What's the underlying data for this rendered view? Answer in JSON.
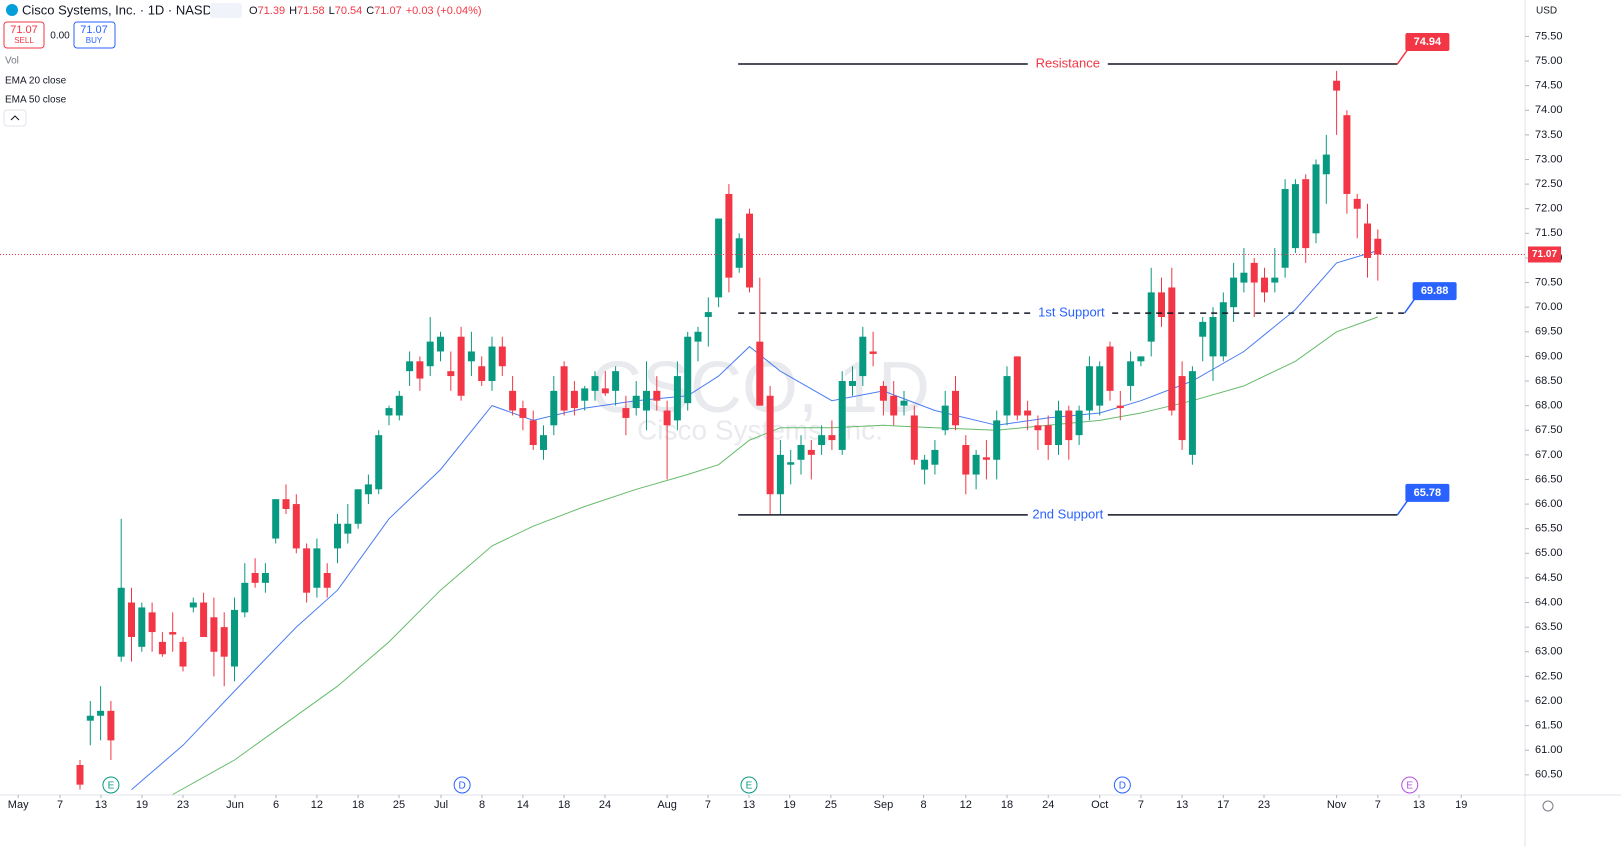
{
  "header": {
    "symbol": "Cisco Systems, Inc. · 1D · NASDAQ",
    "ohlc": [
      {
        "label": "O",
        "value": 71.39
      },
      {
        "label": "H",
        "value": 71.58
      },
      {
        "label": "L",
        "value": 70.54
      },
      {
        "label": "C",
        "value": 71.07
      }
    ],
    "change": "+0.03 (+0.04%)",
    "sell": {
      "price": 71.07,
      "label": "SELL"
    },
    "spread": "0.00",
    "buy": {
      "price": 71.07,
      "label": "BUY"
    },
    "vol": "Vol",
    "currency": "USD"
  },
  "chart_data": {
    "type": "candlestick",
    "watermark": {
      "title": "CSCO, 1D",
      "subtitle": "Cisco Systems, Inc."
    },
    "up_color": "#089981",
    "down_color": "#f23645",
    "open": [
      60.7,
      61.6,
      61.7,
      61.8,
      62.9,
      64.0,
      63.1,
      63.8,
      63.2,
      63.4,
      63.2,
      63.9,
      64.0,
      63.7,
      63.5,
      62.7,
      63.8,
      64.6,
      64.4,
      65.3,
      66.1,
      66.0,
      65.1,
      64.3,
      64.6,
      65.1,
      65.4,
      65.6,
      66.2,
      66.3,
      67.8,
      67.8,
      68.7,
      68.9,
      68.8,
      69.1,
      68.7,
      69.4,
      68.9,
      68.8,
      68.5,
      69.2,
      68.3,
      67.95,
      67.7,
      67.1,
      67.6,
      68.8,
      68.3,
      68.1,
      68.3,
      68.35,
      68.3,
      67.95,
      67.95,
      67.9,
      68.3,
      67.9,
      67.7,
      68.05,
      69.3,
      69.8,
      70.2,
      72.3,
      70.8,
      71.9,
      69.3,
      68.2,
      66.2,
      66.8,
      66.9,
      67.1,
      67.2,
      67.4,
      67.1,
      68.4,
      68.6,
      69.1,
      68.4,
      68.2,
      68.0,
      67.8,
      66.7,
      66.8,
      67.5,
      68.3,
      67.2,
      66.6,
      66.95,
      66.9,
      67.8,
      69.0,
      67.9,
      67.6,
      67.6,
      67.2,
      67.9,
      67.4,
      67.9,
      68.0,
      69.2,
      68.0,
      68.4,
      68.9,
      69.3,
      70.3,
      70.4,
      68.6,
      67.0,
      69.4,
      69.0,
      69.0,
      70.0,
      70.5,
      70.9,
      70.6,
      70.5,
      70.8,
      71.2,
      72.6,
      71.5,
      72.7,
      74.6,
      73.9,
      72.2,
      71.7,
      71.39
    ],
    "high": [
      60.8,
      62.0,
      62.3,
      62.0,
      65.7,
      64.3,
      64.0,
      64.0,
      63.4,
      63.8,
      63.3,
      64.1,
      64.2,
      64.1,
      63.8,
      64.1,
      64.8,
      64.9,
      64.8,
      66.1,
      66.4,
      66.2,
      65.2,
      65.3,
      64.8,
      65.8,
      66.0,
      66.3,
      66.6,
      67.5,
      68.0,
      68.3,
      69.1,
      69.0,
      69.8,
      69.5,
      69.1,
      69.6,
      69.5,
      69.0,
      69.4,
      69.4,
      68.6,
      68.1,
      67.9,
      67.6,
      68.6,
      68.9,
      68.5,
      68.4,
      68.7,
      68.7,
      68.8,
      68.2,
      68.5,
      68.9,
      68.6,
      68.1,
      68.9,
      69.5,
      69.6,
      70.2,
      71.8,
      72.5,
      71.5,
      72.0,
      70.6,
      68.4,
      67.3,
      67.1,
      67.4,
      67.3,
      67.6,
      67.7,
      68.7,
      68.8,
      69.6,
      69.5,
      68.5,
      68.5,
      68.3,
      68.0,
      67.0,
      67.3,
      68.3,
      68.6,
      67.4,
      67.1,
      67.3,
      67.9,
      68.8,
      69.0,
      68.1,
      67.8,
      67.8,
      68.1,
      68.0,
      68.0,
      69.0,
      68.9,
      69.3,
      68.3,
      69.1,
      69.0,
      70.8,
      70.6,
      70.8,
      68.9,
      68.8,
      69.8,
      70.0,
      70.3,
      70.9,
      71.2,
      71.0,
      70.8,
      71.2,
      72.6,
      72.6,
      72.7,
      73.0,
      73.5,
      74.8,
      74.0,
      72.3,
      72.1,
      71.58
    ],
    "low": [
      60.2,
      61.1,
      61.2,
      60.8,
      62.8,
      62.8,
      63.0,
      63.0,
      62.9,
      63.0,
      62.6,
      63.8,
      63.3,
      62.5,
      62.3,
      62.4,
      63.7,
      64.3,
      64.2,
      65.2,
      65.8,
      65.0,
      64.0,
      64.1,
      64.1,
      64.8,
      65.2,
      65.5,
      66.0,
      66.2,
      67.6,
      67.7,
      68.4,
      68.3,
      68.6,
      68.9,
      68.3,
      68.1,
      68.6,
      68.4,
      68.3,
      68.6,
      67.8,
      67.5,
      67.1,
      66.9,
      67.4,
      67.8,
      67.8,
      67.9,
      68.1,
      68.2,
      68.0,
      67.4,
      67.8,
      67.5,
      67.9,
      66.5,
      67.5,
      67.9,
      68.9,
      69.2,
      70.0,
      70.3,
      70.7,
      70.3,
      68.0,
      65.8,
      65.8,
      66.4,
      66.6,
      66.5,
      67.0,
      67.1,
      67.0,
      68.2,
      68.4,
      68.8,
      67.8,
      67.6,
      67.8,
      66.8,
      66.4,
      66.6,
      67.4,
      67.5,
      66.2,
      66.3,
      66.5,
      66.5,
      67.6,
      67.7,
      67.5,
      67.1,
      66.9,
      67.0,
      66.9,
      67.2,
      67.7,
      67.8,
      68.1,
      67.7,
      68.1,
      68.8,
      69.0,
      69.6,
      67.8,
      67.1,
      66.8,
      68.9,
      68.5,
      68.9,
      69.7,
      70.3,
      69.8,
      70.1,
      70.3,
      70.6,
      71.1,
      70.9,
      71.3,
      72.1,
      73.5,
      71.9,
      71.4,
      70.6,
      70.54
    ],
    "close": [
      60.3,
      61.7,
      61.8,
      61.2,
      64.3,
      63.3,
      63.9,
      63.4,
      62.95,
      63.35,
      62.7,
      64.0,
      63.3,
      63.0,
      62.9,
      63.85,
      64.4,
      64.4,
      64.6,
      66.1,
      65.9,
      65.1,
      64.2,
      65.1,
      64.3,
      65.6,
      65.6,
      66.3,
      66.4,
      67.4,
      67.95,
      68.2,
      68.9,
      68.55,
      69.3,
      69.4,
      68.6,
      68.2,
      69.1,
      68.5,
      69.2,
      68.8,
      67.9,
      67.75,
      67.2,
      67.4,
      68.3,
      67.9,
      67.95,
      68.35,
      68.6,
      68.25,
      68.7,
      67.75,
      68.2,
      68.3,
      68.1,
      67.6,
      68.6,
      69.4,
      69.5,
      69.9,
      71.8,
      70.6,
      71.4,
      70.4,
      68.0,
      66.2,
      67.0,
      66.85,
      67.2,
      67.0,
      67.4,
      67.3,
      68.5,
      68.5,
      69.4,
      69.05,
      68.1,
      67.8,
      68.1,
      66.9,
      66.9,
      67.1,
      68.0,
      67.6,
      66.6,
      67.0,
      66.9,
      67.7,
      68.6,
      67.8,
      67.8,
      67.5,
      67.2,
      67.9,
      67.3,
      67.9,
      68.8,
      68.8,
      68.3,
      67.95,
      68.9,
      69.0,
      70.3,
      69.8,
      67.9,
      67.3,
      68.7,
      69.7,
      69.8,
      70.1,
      70.6,
      70.7,
      70.5,
      70.3,
      70.6,
      72.4,
      72.5,
      71.2,
      72.9,
      73.1,
      74.4,
      72.3,
      72.0,
      71.0,
      71.07
    ],
    "series": [
      {
        "name": "EMA 20 close",
        "color": "#4a7cf0",
        "x": [
          5,
          10,
          15,
          21,
          25,
          30,
          35,
          40,
          44,
          49,
          54,
          59,
          62,
          65,
          68,
          73,
          78,
          83,
          89,
          94,
          99,
          103,
          108,
          113,
          118,
          122,
          126
        ],
        "values": [
          60.2,
          61.1,
          62.2,
          63.5,
          64.25,
          65.7,
          66.7,
          68.0,
          67.7,
          67.95,
          68.1,
          68.2,
          68.6,
          69.2,
          68.7,
          68.1,
          68.3,
          67.9,
          67.6,
          67.75,
          67.85,
          68.1,
          68.5,
          69.1,
          69.95,
          70.9,
          71.15
        ]
      },
      {
        "name": "EMA 50 close",
        "color": "#66bb6a",
        "x": [
          9,
          15,
          21,
          25,
          30,
          35,
          40,
          44,
          49,
          54,
          59,
          62,
          65,
          68,
          73,
          78,
          83,
          89,
          94,
          99,
          103,
          108,
          113,
          118,
          122,
          126
        ],
        "values": [
          60.1,
          60.8,
          61.7,
          62.3,
          63.2,
          64.25,
          65.15,
          65.55,
          65.95,
          66.3,
          66.6,
          66.8,
          67.3,
          67.55,
          67.55,
          67.6,
          67.55,
          67.5,
          67.6,
          67.7,
          67.85,
          68.1,
          68.4,
          68.9,
          69.5,
          69.8
        ]
      }
    ],
    "levels": [
      {
        "label": "Resistance",
        "value": 74.94,
        "color": "#f23645",
        "style": "solid",
        "x_start": 63.9,
        "x_end": 127.9
      },
      {
        "label": "1st Support",
        "value": 69.88,
        "color": "#2962ff",
        "style": "dashed",
        "x_start": 63.9,
        "x_end": 128.6
      },
      {
        "label": "2nd Support",
        "value": 65.78,
        "color": "#2962ff",
        "style": "solid",
        "x_start": 63.9,
        "x_end": 127.9
      }
    ],
    "events": [
      {
        "label": "E",
        "x": 3.0,
        "color": "#089981"
      },
      {
        "label": "D",
        "x": 37.1,
        "color": "#2962ff"
      },
      {
        "label": "E",
        "x": 64.95,
        "color": "#089981"
      },
      {
        "label": "D",
        "x": 101.2,
        "color": "#2962ff"
      },
      {
        "label": "E",
        "x": 129.1,
        "color": "#b44fe0"
      }
    ],
    "xlim": [
      -7.767,
      140.29
    ],
    "ylim": [
      60.09,
      76.24
    ],
    "grid": false,
    "xticks": [
      {
        "value": -6.0,
        "label": "May"
      },
      {
        "value": -1.94,
        "label": "7"
      },
      {
        "value": 2.04,
        "label": "13"
      },
      {
        "value": 6.02,
        "label": "19"
      },
      {
        "value": 10.0,
        "label": "23"
      },
      {
        "value": 15.05,
        "label": "Jun"
      },
      {
        "value": 19.03,
        "label": "6"
      },
      {
        "value": 23.0,
        "label": "12"
      },
      {
        "value": 27.0,
        "label": "18"
      },
      {
        "value": 30.97,
        "label": "25"
      },
      {
        "value": 35.05,
        "label": "Jul"
      },
      {
        "value": 39.03,
        "label": "8"
      },
      {
        "value": 43.0,
        "label": "14"
      },
      {
        "value": 47.0,
        "label": "18"
      },
      {
        "value": 50.97,
        "label": "24"
      },
      {
        "value": 57.0,
        "label": "Aug"
      },
      {
        "value": 60.97,
        "label": "7"
      },
      {
        "value": 64.95,
        "label": "13"
      },
      {
        "value": 68.9,
        "label": "19"
      },
      {
        "value": 72.9,
        "label": "25"
      },
      {
        "value": 78.0,
        "label": "Sep"
      },
      {
        "value": 81.9,
        "label": "8"
      },
      {
        "value": 86.0,
        "label": "12"
      },
      {
        "value": 90.0,
        "label": "18"
      },
      {
        "value": 94.0,
        "label": "24"
      },
      {
        "value": 99.0,
        "label": "Oct"
      },
      {
        "value": 103.0,
        "label": "7"
      },
      {
        "value": 107.0,
        "label": "13"
      },
      {
        "value": 111.0,
        "label": "17"
      },
      {
        "value": 114.95,
        "label": "23"
      },
      {
        "value": 122.0,
        "label": "Nov"
      },
      {
        "value": 126.0,
        "label": "7"
      },
      {
        "value": 130.0,
        "label": "13"
      },
      {
        "value": 134.1,
        "label": "19"
      }
    ],
    "yticks": [
      {
        "value": 60.5,
        "label": "60.50"
      },
      {
        "value": 61,
        "label": "61.00"
      },
      {
        "value": 61.5,
        "label": "61.50"
      },
      {
        "value": 62,
        "label": "62.00"
      },
      {
        "value": 62.5,
        "label": "62.50"
      },
      {
        "value": 63,
        "label": "63.00"
      },
      {
        "value": 63.5,
        "label": "63.50"
      },
      {
        "value": 64,
        "label": "64.00"
      },
      {
        "value": 64.5,
        "label": "64.50"
      },
      {
        "value": 65,
        "label": "65.00"
      },
      {
        "value": 65.5,
        "label": "65.50"
      },
      {
        "value": 66,
        "label": "66.00"
      },
      {
        "value": 66.5,
        "label": "66.50"
      },
      {
        "value": 67,
        "label": "67.00"
      },
      {
        "value": 67.5,
        "label": "67.50"
      },
      {
        "value": 68,
        "label": "68.00"
      },
      {
        "value": 68.5,
        "label": "68.50"
      },
      {
        "value": 69,
        "label": "69.00"
      },
      {
        "value": 69.5,
        "label": "69.50"
      },
      {
        "value": 70,
        "label": "70.00"
      },
      {
        "value": 70.5,
        "label": "70.50"
      },
      {
        "value": 71,
        "label": "71.00"
      },
      {
        "value": 71.5,
        "label": "71.50"
      },
      {
        "value": 72,
        "label": "72.00"
      },
      {
        "value": 72.5,
        "label": "72.50"
      },
      {
        "value": 73,
        "label": "73.00"
      },
      {
        "value": 73.5,
        "label": "73.50"
      },
      {
        "value": 74,
        "label": "74.00"
      },
      {
        "value": 74.5,
        "label": "74.50"
      },
      {
        "value": 75,
        "label": "75.00"
      },
      {
        "value": 75.5,
        "label": "75.50"
      }
    ]
  }
}
